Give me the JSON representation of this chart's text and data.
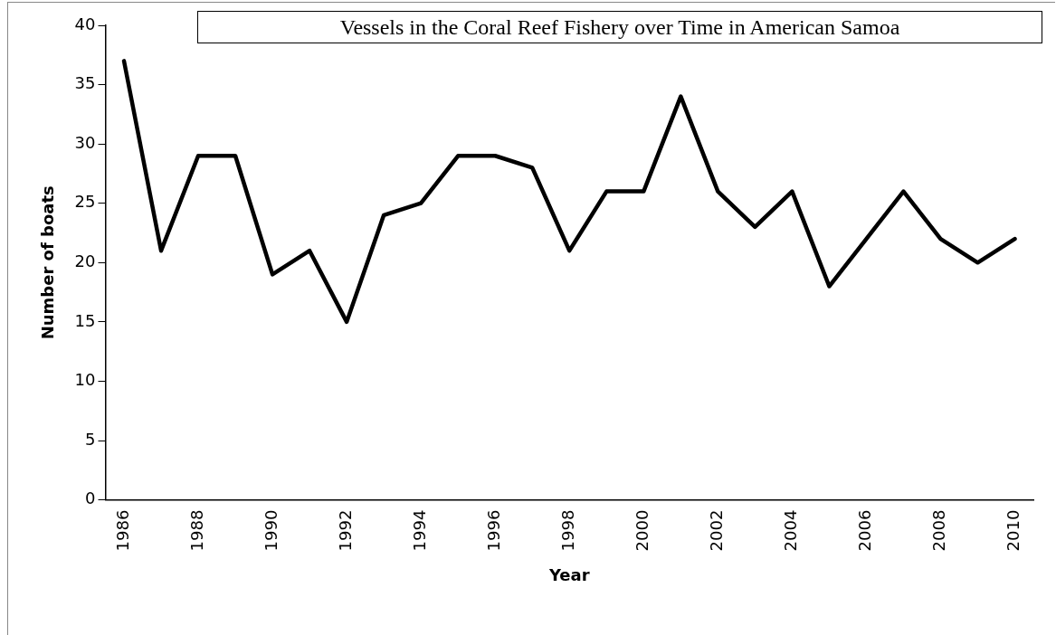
{
  "chart_data": {
    "type": "line",
    "title": "Vessels in the Coral Reef Fishery over Time in American Samoa",
    "xlabel": "Year",
    "ylabel": "Number of boats",
    "categories": [
      "1986",
      null,
      "1988",
      null,
      "1990",
      null,
      "1992",
      null,
      "1994",
      null,
      "1996",
      null,
      "1998",
      null,
      "2000",
      null,
      "2002",
      null,
      "2004",
      null,
      "2006",
      null,
      "2008",
      null,
      "2010"
    ],
    "series": [
      {
        "color": "#000000",
        "values": [
          37,
          21,
          29,
          29,
          19,
          21,
          15,
          24,
          25,
          29,
          29,
          28,
          21,
          26,
          26,
          34,
          26,
          23,
          26,
          18,
          22,
          26,
          22,
          20,
          22
        ]
      }
    ],
    "ylim": [
      0,
      40
    ],
    "yticks": [
      0,
      5,
      10,
      15,
      20,
      25,
      30,
      35,
      40
    ],
    "grid": false,
    "legend": false,
    "marker": "none",
    "line_style": "solid"
  }
}
